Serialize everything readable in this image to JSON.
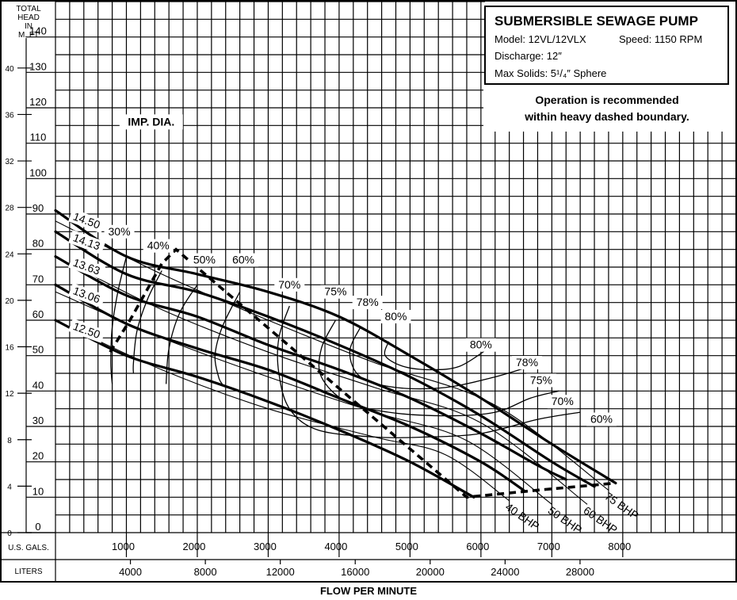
{
  "info_box": {
    "title": "SUBMERSIBLE SEWAGE PUMP",
    "model": "Model: 12VL/12VLX",
    "speed": "Speed: 1150 RPM",
    "discharge": "Discharge: 12″",
    "solids": "Max Solids: 5¹/₄″ Sphere"
  },
  "note": [
    "Operation is recommended",
    "within heavy dashed boundary."
  ],
  "chart_data": {
    "type": "line",
    "title": "SUBMERSIBLE SEWAGE PUMP",
    "xlabel": "FLOW PER MINUTE",
    "ylabel": "TOTAL HEAD IN M. FT",
    "y_axis_header": [
      "TOTAL",
      "HEAD",
      "IN",
      "M. FT"
    ],
    "x_units_gal": "U.S. GALS.",
    "x_units_liters": "LITERS",
    "impeller_label": "IMP. DIA.",
    "xlim_gpm": [
      0,
      9600
    ],
    "ylim_ft": [
      0,
      150
    ],
    "ft_ticks": [
      0,
      10,
      20,
      30,
      40,
      50,
      60,
      70,
      80,
      90,
      100,
      110,
      120,
      130,
      140
    ],
    "m_ticks": [
      0,
      4,
      8,
      12,
      16,
      20,
      24,
      28,
      32,
      36,
      40
    ],
    "gal_ticks": [
      1000,
      2000,
      3000,
      4000,
      5000,
      6000,
      7000,
      8000
    ],
    "liter_ticks": [
      4000,
      8000,
      12000,
      16000,
      20000,
      24000,
      28000
    ],
    "grid": true,
    "head_curves": [
      {
        "name": "14.50",
        "points": [
          [
            0,
            91
          ],
          [
            1000,
            78
          ],
          [
            2000,
            73
          ],
          [
            3000,
            68
          ],
          [
            4000,
            61
          ],
          [
            5000,
            50
          ],
          [
            6000,
            38
          ],
          [
            7000,
            25
          ],
          [
            7900,
            14
          ]
        ]
      },
      {
        "name": "14.13",
        "points": [
          [
            0,
            85
          ],
          [
            1000,
            73
          ],
          [
            2000,
            68
          ],
          [
            3000,
            61
          ],
          [
            4000,
            53
          ],
          [
            5000,
            44
          ],
          [
            6000,
            33
          ],
          [
            7000,
            20
          ],
          [
            7600,
            13
          ]
        ]
      },
      {
        "name": "13.63",
        "points": [
          [
            0,
            78
          ],
          [
            1000,
            67
          ],
          [
            2000,
            61
          ],
          [
            3000,
            53
          ],
          [
            4000,
            46
          ],
          [
            5000,
            38
          ],
          [
            6000,
            28
          ],
          [
            6800,
            19
          ],
          [
            7200,
            15
          ]
        ]
      },
      {
        "name": "13.06",
        "points": [
          [
            0,
            70
          ],
          [
            1000,
            59
          ],
          [
            2000,
            52
          ],
          [
            3000,
            46
          ],
          [
            4000,
            38
          ],
          [
            5000,
            30
          ],
          [
            6000,
            20
          ],
          [
            6600,
            12
          ]
        ]
      },
      {
        "name": "12.50",
        "points": [
          [
            0,
            60
          ],
          [
            1000,
            50
          ],
          [
            2000,
            44
          ],
          [
            3000,
            37
          ],
          [
            4000,
            29
          ],
          [
            5000,
            20
          ],
          [
            5900,
            10
          ]
        ]
      }
    ],
    "efficiency_curves": [
      {
        "name": "30%",
        "points": [
          [
            1000,
            78
          ],
          [
            880,
            68
          ],
          [
            800,
            58
          ],
          [
            780,
            48
          ],
          [
            800,
            42
          ]
        ]
      },
      {
        "name": "40%",
        "points": [
          [
            1500,
            74
          ],
          [
            1300,
            66
          ],
          [
            1150,
            57
          ],
          [
            1100,
            48
          ],
          [
            1100,
            45
          ]
        ]
      },
      {
        "name": "50%",
        "points": [
          [
            2000,
            70
          ],
          [
            1750,
            62
          ],
          [
            1600,
            52
          ],
          [
            1560,
            42
          ]
        ]
      },
      {
        "name": "60%",
        "points": [
          [
            2600,
            68
          ],
          [
            2350,
            58
          ],
          [
            2250,
            50
          ],
          [
            2300,
            44
          ],
          [
            2350,
            42
          ]
        ]
      },
      {
        "name": "70%",
        "points": [
          [
            3300,
            64
          ],
          [
            3150,
            55
          ],
          [
            3150,
            45
          ],
          [
            3300,
            35
          ],
          [
            3700,
            29
          ],
          [
            4500,
            27
          ],
          [
            5200,
            27
          ],
          [
            6000,
            28
          ],
          [
            6800,
            32
          ],
          [
            7400,
            34
          ]
        ]
      },
      {
        "name": "75%",
        "points": [
          [
            3950,
            60
          ],
          [
            3750,
            52
          ],
          [
            3750,
            44
          ],
          [
            4100,
            37
          ],
          [
            4700,
            34
          ],
          [
            5500,
            33
          ],
          [
            6200,
            34
          ],
          [
            6700,
            38
          ],
          [
            7100,
            40
          ]
        ]
      },
      {
        "name": "78%",
        "points": [
          [
            4300,
            58
          ],
          [
            4150,
            51
          ],
          [
            4300,
            44
          ],
          [
            4800,
            41
          ],
          [
            5500,
            41
          ],
          [
            6200,
            44
          ],
          [
            6700,
            47
          ]
        ]
      },
      {
        "name": "80%",
        "points": [
          [
            4700,
            54
          ],
          [
            4650,
            50
          ],
          [
            4900,
            47
          ],
          [
            5300,
            46
          ],
          [
            5700,
            47
          ],
          [
            6100,
            52
          ]
        ]
      }
    ],
    "bhp_lines": [
      {
        "name": "40 BHP",
        "points": [
          [
            0,
            60
          ],
          [
            1500,
            46
          ],
          [
            3000,
            35
          ],
          [
            4500,
            27
          ],
          [
            5500,
            22
          ],
          [
            6400,
            9
          ]
        ]
      },
      {
        "name": "50 BHP",
        "points": [
          [
            0,
            68
          ],
          [
            1500,
            55
          ],
          [
            3000,
            44
          ],
          [
            4500,
            34
          ],
          [
            5800,
            26
          ],
          [
            7000,
            8
          ]
        ]
      },
      {
        "name": "60 BHP",
        "points": [
          [
            0,
            78
          ],
          [
            1500,
            63
          ],
          [
            3000,
            51
          ],
          [
            4500,
            41
          ],
          [
            6000,
            31
          ],
          [
            7500,
            8
          ]
        ]
      },
      {
        "name": "75 BHP",
        "points": [
          [
            0,
            88
          ],
          [
            1500,
            73
          ],
          [
            3000,
            60
          ],
          [
            4500,
            48
          ],
          [
            6200,
            36
          ],
          [
            7800,
            12
          ]
        ]
      }
    ],
    "operating_boundary": [
      [
        770,
        51
      ],
      [
        1050,
        60
      ],
      [
        1500,
        76
      ],
      [
        1700,
        80
      ],
      [
        5800,
        10
      ],
      [
        6800,
        12
      ],
      [
        7900,
        14
      ]
    ],
    "impeller_label_pos": [
      1350,
      115
    ]
  }
}
